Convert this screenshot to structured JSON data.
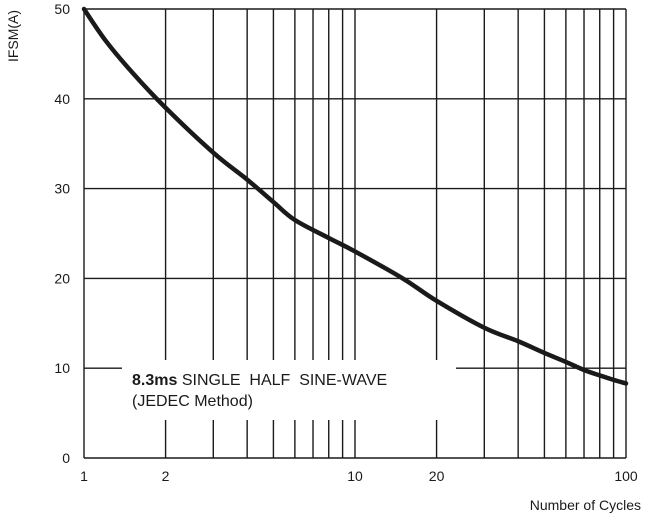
{
  "chart_data": {
    "type": "line",
    "title": "",
    "ylabel": "IFSM(A)",
    "xlabel": "Number of Cycles",
    "x_scale": "log",
    "xlim": [
      1,
      100
    ],
    "ylim": [
      0,
      50
    ],
    "x_tick_labels": [
      {
        "value": 1,
        "label": "1"
      },
      {
        "value": 2,
        "label": "2"
      },
      {
        "value": 10,
        "label": "10"
      },
      {
        "value": 20,
        "label": "20"
      },
      {
        "value": 100,
        "label": "100"
      }
    ],
    "y_tick_labels": [
      {
        "value": 0,
        "label": "0"
      },
      {
        "value": 10,
        "label": "10"
      },
      {
        "value": 20,
        "label": "20"
      },
      {
        "value": 30,
        "label": "30"
      },
      {
        "value": 40,
        "label": "40"
      },
      {
        "value": 50,
        "label": "50"
      }
    ],
    "x_gridlines": [
      1,
      2,
      3,
      4,
      5,
      6,
      7,
      8,
      9,
      10,
      20,
      30,
      40,
      50,
      60,
      70,
      80,
      90,
      100
    ],
    "y_gridlines": [
      0,
      10,
      20,
      30,
      40,
      50
    ],
    "grid": true,
    "series": [
      {
        "x": [
          1,
          1.2,
          1.5,
          2,
          3,
          4,
          5,
          6,
          8,
          10,
          15,
          20,
          30,
          40,
          50,
          60,
          70,
          80,
          90,
          100
        ],
        "y": [
          50,
          46.5,
          43,
          39,
          34,
          31,
          28.5,
          26.5,
          24.5,
          23,
          20,
          17.5,
          14.5,
          13,
          11.7,
          10.7,
          9.8,
          9.2,
          8.7,
          8.3
        ]
      }
    ],
    "annotation": {
      "bold_part": "8.3ms",
      "rest_line1": " SINGLE  HALF  SINE-WAVE",
      "line2": "(JEDEC Method)"
    }
  }
}
